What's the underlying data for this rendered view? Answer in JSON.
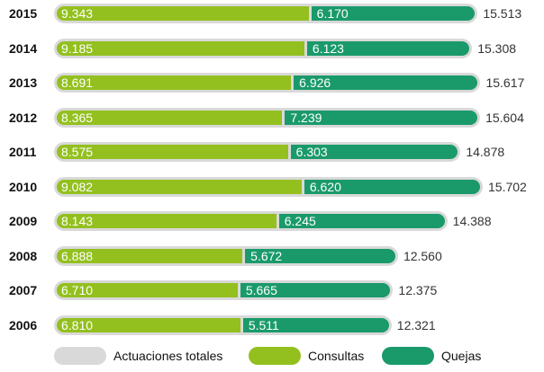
{
  "chart_data": {
    "type": "bar",
    "orientation": "horizontal",
    "stacked": true,
    "categories": [
      "2015",
      "2014",
      "2013",
      "2012",
      "2011",
      "2010",
      "2009",
      "2008",
      "2007",
      "2006"
    ],
    "series": [
      {
        "name": "Consultas",
        "values": [
          "9.343",
          "9.185",
          "8.691",
          "8.365",
          "8.575",
          "9.082",
          "8.143",
          "6.888",
          "6.710",
          "6.810"
        ]
      },
      {
        "name": "Quejas",
        "values": [
          "6.170",
          "6.123",
          "6.926",
          "7.239",
          "6.303",
          "6.620",
          "6.245",
          "5.672",
          "5.665",
          "5.511"
        ]
      }
    ],
    "totals": {
      "name": "Actuaciones totales",
      "values": [
        "15.513",
        "15.308",
        "15.617",
        "15.604",
        "14.878",
        "15.702",
        "14.388",
        "12.560",
        "12.375",
        "12.321"
      ]
    },
    "legend": [
      "Actuaciones totales",
      "Consultas",
      "Quejas"
    ],
    "legend_position": "bottom",
    "grid": false,
    "xlim": [
      0,
      16000
    ]
  },
  "colors": {
    "total": "#d9d9d9",
    "consultas": "#93c01f",
    "quejas": "#1a9a6b"
  }
}
